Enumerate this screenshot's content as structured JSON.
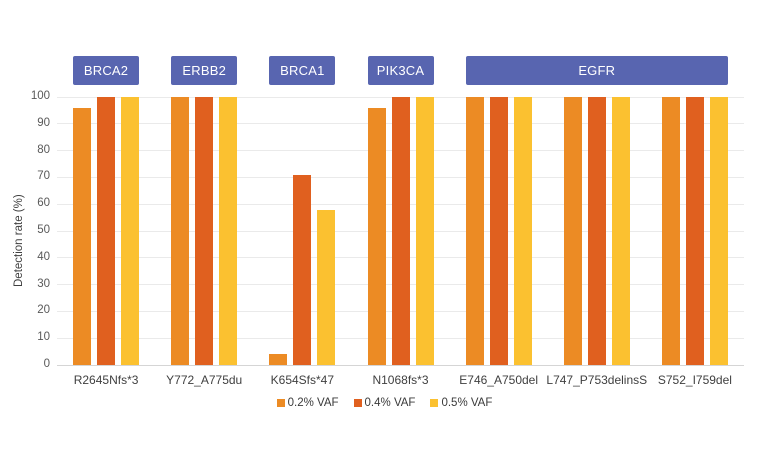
{
  "chart_data": {
    "type": "bar",
    "title": "",
    "xlabel": "",
    "ylabel": "Detection rate (%)",
    "ylim": [
      0,
      100
    ],
    "yticks": [
      0,
      10,
      20,
      30,
      40,
      50,
      60,
      70,
      80,
      90,
      100
    ],
    "grid": true,
    "legend_position": "bottom-center",
    "categories": [
      "R2645Nfs*3",
      "Y772_A775du",
      "K654Sfs*47",
      "N1068fs*3",
      "E746_A750del",
      "L747_P753delinsS",
      "S752_I759del"
    ],
    "gene_groups": [
      {
        "label": "BRCA2",
        "start": 0,
        "end": 0
      },
      {
        "label": "ERBB2",
        "start": 1,
        "end": 1
      },
      {
        "label": "BRCA1",
        "start": 2,
        "end": 2
      },
      {
        "label": "PIK3CA",
        "start": 3,
        "end": 3
      },
      {
        "label": "EGFR",
        "start": 4,
        "end": 6
      }
    ],
    "series": [
      {
        "name": "0.2% VAF",
        "color": "#EC8B24",
        "values": [
          96,
          100,
          4,
          96,
          100,
          100,
          100
        ]
      },
      {
        "name": "0.4% VAF",
        "color": "#E0601F",
        "values": [
          100,
          100,
          71,
          100,
          100,
          100,
          100
        ]
      },
      {
        "name": "0.5% VAF",
        "color": "#FBC130",
        "values": [
          100,
          100,
          58,
          100,
          100,
          100,
          100
        ]
      }
    ],
    "colors": {
      "gene_header_bg": "#5865B0",
      "gene_header_text": "#FFFFFF",
      "grid_color": "#EAEAEA",
      "axis_line": "#D5D5D5",
      "tick_text": "#595959",
      "label_text": "#3F3F3F"
    }
  }
}
